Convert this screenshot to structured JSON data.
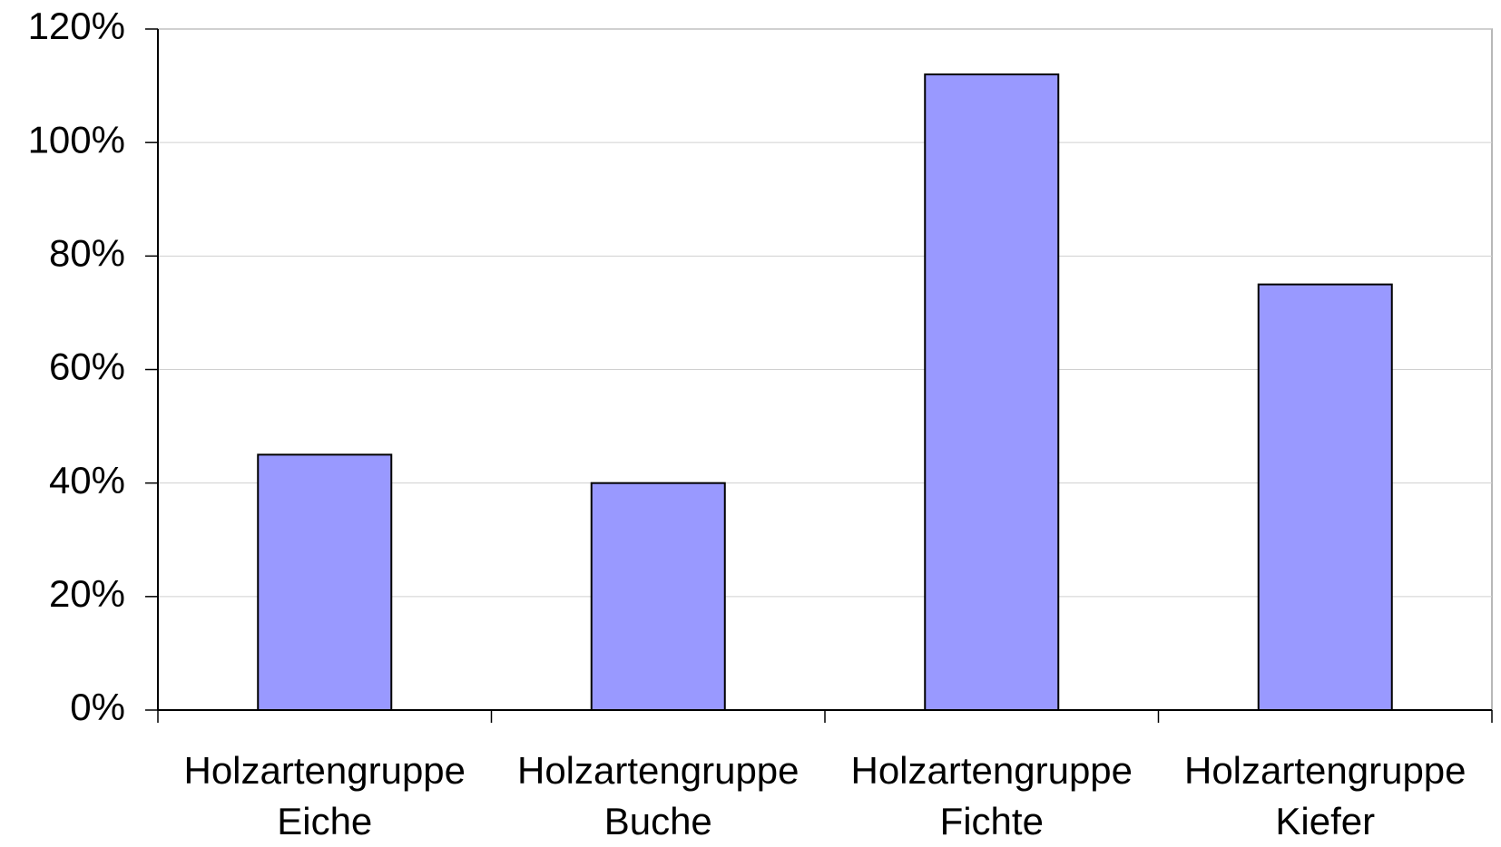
{
  "chart_data": {
    "type": "bar",
    "categories": [
      "Holzartengruppe Eiche",
      "Holzartengruppe Buche",
      "Holzartengruppe Fichte",
      "Holzartengruppe Kiefer"
    ],
    "values": [
      45,
      40,
      112,
      75
    ],
    "color": "#9999ff",
    "ylim": [
      0,
      120
    ],
    "yticks": [
      {
        "value": 0,
        "label": "0%"
      },
      {
        "value": 20,
        "label": "20%"
      },
      {
        "value": 40,
        "label": "40%"
      },
      {
        "value": 60,
        "label": "60%"
      },
      {
        "value": 80,
        "label": "80%"
      },
      {
        "value": 100,
        "label": "100%"
      },
      {
        "value": 120,
        "label": "120%"
      }
    ],
    "grid": true
  }
}
